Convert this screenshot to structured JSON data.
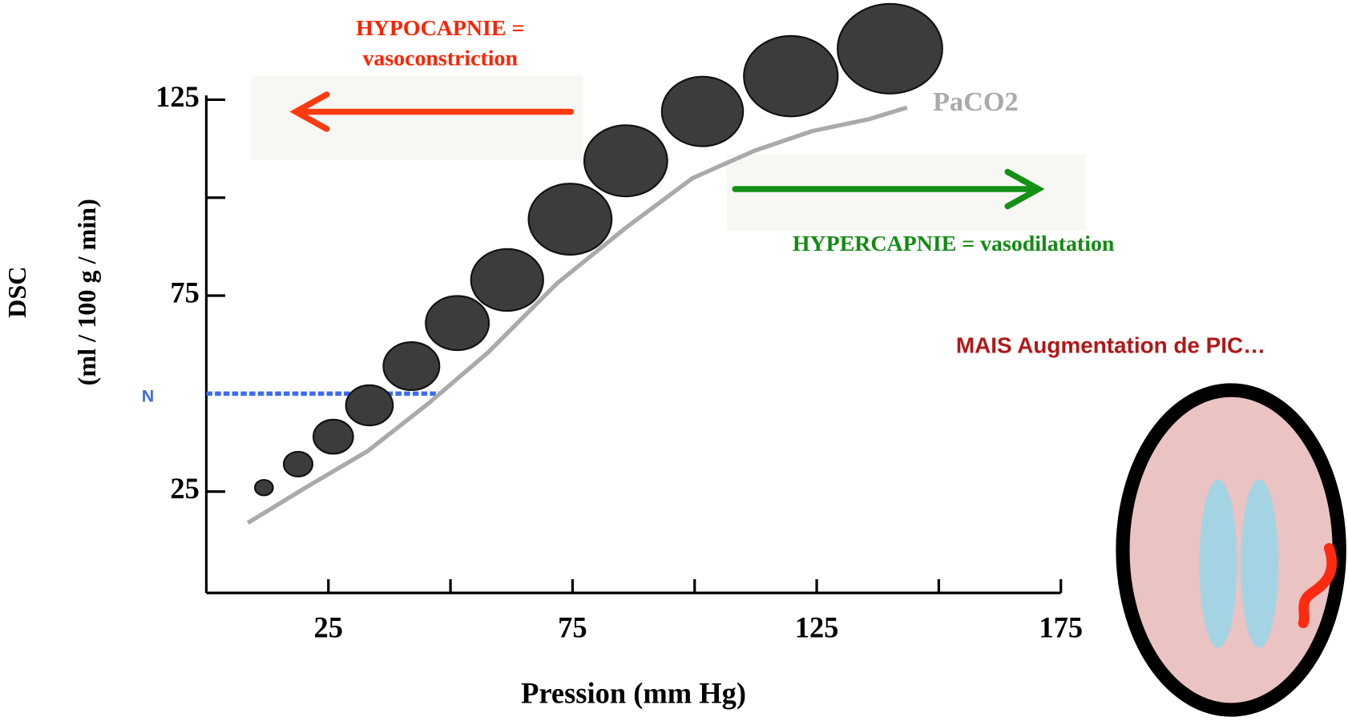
{
  "chart_data": {
    "type": "bubble",
    "xlabel": "Pression (mm Hg)",
    "ylabel": "DSC",
    "ylabel_unit": "(ml / 100 g / min)",
    "xlim": [
      0,
      175
    ],
    "ylim": [
      0,
      125
    ],
    "xticks": [
      25,
      75,
      125,
      175
    ],
    "xticks_minor": [
      50,
      100,
      150
    ],
    "yticks": [
      25,
      75,
      125
    ],
    "yticks_minor": [
      100
    ],
    "series": [
      {
        "name": "PaCO2",
        "type": "line",
        "color": "#aaaaaa",
        "x": [
          8.5,
          21,
          33,
          45.4,
          57.7,
          71.8,
          85.9,
          99.6,
          112.3,
          124.1,
          135.6,
          143.5
        ],
        "values": [
          17,
          26.5,
          35.3,
          47.4,
          60.5,
          78.1,
          92.3,
          105,
          112,
          117,
          120,
          123
        ]
      },
      {
        "type": "bubble",
        "color": "#3c3c3c",
        "x": [
          11.8,
          18.8,
          26,
          33.4,
          42,
          51.4,
          61.6,
          74.5,
          85.9,
          101.6,
          119.7,
          140
        ],
        "values": [
          26,
          32,
          39,
          47,
          57,
          68,
          79,
          94.5,
          109.4,
          122,
          131,
          138
        ],
        "sizes": [
          10,
          16,
          22,
          26,
          31,
          35,
          40,
          46,
          46,
          45,
          52,
          58
        ]
      }
    ],
    "reference_line": {
      "label": "N",
      "value": 50,
      "x_end": 48,
      "color": "#3d6cf0"
    },
    "annotations": [
      {
        "lines": [
          "HYPOCAPNIE =",
          "vasoconstriction"
        ],
        "color": "#ff2200"
      },
      {
        "lines": [
          "HYPERCAPNIE = vasodilatation"
        ],
        "color": "#128c12"
      }
    ],
    "note": "MAIS Augmentation de PIC…",
    "note_color": "#b01818"
  }
}
